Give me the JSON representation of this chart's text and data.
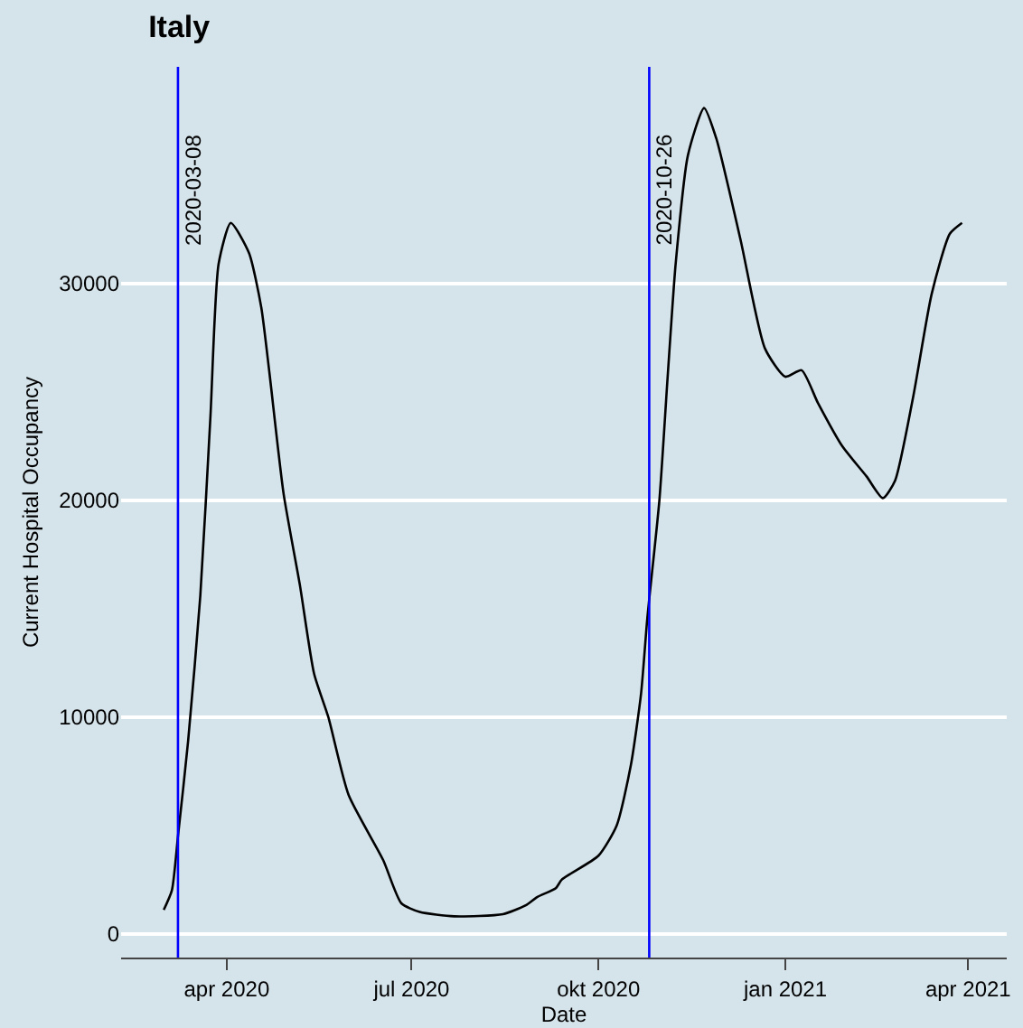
{
  "chart_data": {
    "type": "line",
    "title": "Italy",
    "xlabel": "Date",
    "ylabel": "Current Hospital Occupancy",
    "x": [
      "2020-03-01",
      "2020-03-05",
      "2020-03-08",
      "2020-03-13",
      "2020-03-19",
      "2020-03-24",
      "2020-03-28",
      "2020-04-03",
      "2020-04-12",
      "2020-04-18",
      "2020-04-22",
      "2020-04-29",
      "2020-05-07",
      "2020-05-14",
      "2020-05-21",
      "2020-05-31",
      "2020-06-17",
      "2020-06-26",
      "2020-07-05",
      "2020-07-22",
      "2020-08-15",
      "2020-08-26",
      "2020-09-01",
      "2020-09-10",
      "2020-09-13",
      "2020-10-01",
      "2020-10-10",
      "2020-10-17",
      "2020-10-22",
      "2020-10-25",
      "2020-10-31",
      "2020-11-04",
      "2020-11-08",
      "2020-11-14",
      "2020-11-22",
      "2020-11-28",
      "2020-12-10",
      "2020-12-22",
      "2021-01-01",
      "2021-01-09",
      "2021-01-17",
      "2021-01-29",
      "2021-02-10",
      "2021-02-18",
      "2021-02-24",
      "2021-03-05",
      "2021-03-14",
      "2021-03-23",
      "2021-03-29"
    ],
    "series": [
      {
        "color": "#000000",
        "values": [
          1100,
          2000,
          4500,
          8900,
          15600,
          23900,
          30900,
          32800,
          31400,
          28900,
          25900,
          20300,
          16100,
          12000,
          10000,
          6400,
          3400,
          1400,
          1000,
          800,
          900,
          1300,
          1700,
          2100,
          2500,
          3600,
          5000,
          7800,
          11100,
          14500,
          20000,
          25600,
          30900,
          35900,
          38100,
          36700,
          32000,
          27000,
          25700,
          26000,
          24500,
          22500,
          21100,
          20100,
          20900,
          24800,
          29500,
          32300,
          32800
        ]
      }
    ],
    "xlim": [
      "2020-02-09",
      "2021-04-20"
    ],
    "ylim": [
      -1100,
      40000
    ],
    "xticks": [
      {
        "value": "2020-04-01",
        "label": "apr 2020"
      },
      {
        "value": "2020-07-01",
        "label": "jul 2020"
      },
      {
        "value": "2020-10-01",
        "label": "okt 2020"
      },
      {
        "value": "2021-01-01",
        "label": "jan 2021"
      },
      {
        "value": "2021-04-01",
        "label": "apr 2021"
      }
    ],
    "yticks": [
      0,
      10000,
      20000,
      30000
    ],
    "ref_lines": [
      {
        "axis": "x",
        "value": "2020-03-08",
        "label": "2020-03-08",
        "color": "#0000ff"
      },
      {
        "axis": "x",
        "value": "2020-10-26",
        "label": "2020-10-26",
        "color": "#0000ff"
      }
    ],
    "grid": "y",
    "marker": "none",
    "line_style": "solid"
  }
}
